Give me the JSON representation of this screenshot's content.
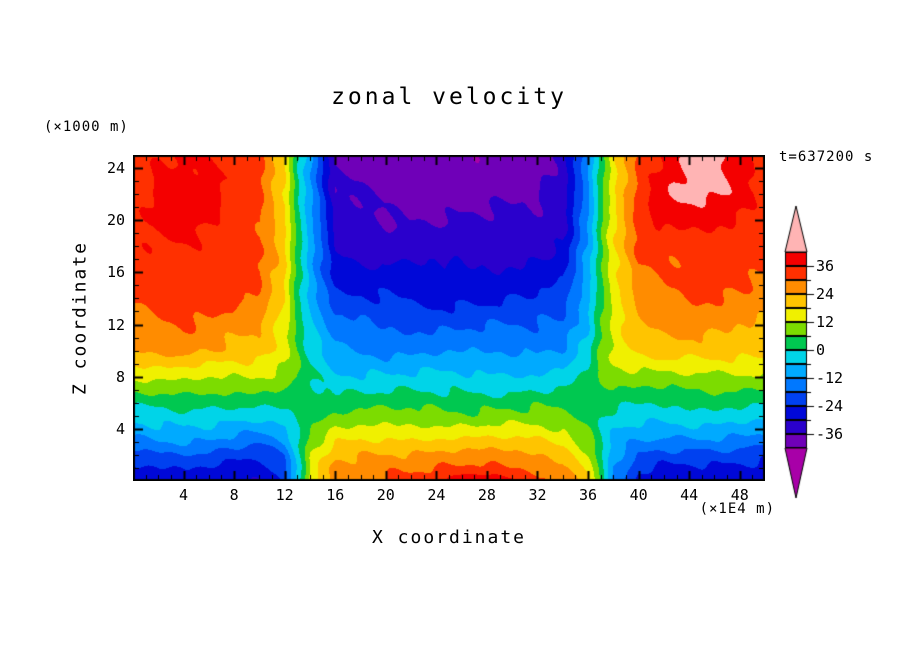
{
  "title": "zonal velocity",
  "timestamp": "t=637200 s",
  "y_axis": {
    "label": "Z coordinate",
    "unit": "(×1000 m)",
    "ticks": [
      4,
      8,
      12,
      16,
      20,
      24
    ]
  },
  "x_axis": {
    "label": "X coordinate",
    "unit": "(×1E4 m)",
    "ticks": [
      4,
      8,
      12,
      16,
      20,
      24,
      28,
      32,
      36,
      40,
      44,
      48
    ]
  },
  "colorbar": {
    "labels": [
      36,
      24,
      12,
      0,
      -12,
      -24,
      -36
    ]
  },
  "chart_data": {
    "type": "heatmap",
    "title": "zonal velocity",
    "xlabel": "X coordinate (×1E4 m)",
    "ylabel": "Z coordinate (×1000 m)",
    "x_range": [
      0,
      50
    ],
    "z_range": [
      0,
      25
    ],
    "grid": false,
    "legend_position": "right-colorbar",
    "levels": [
      -42,
      -36,
      -30,
      -24,
      -18,
      -12,
      -6,
      0,
      6,
      12,
      18,
      24,
      30,
      36,
      42
    ],
    "colors": [
      "#6f00b8",
      "#2a00cc",
      "#0008d8",
      "#0041f0",
      "#0078ff",
      "#00aaff",
      "#00d4e8",
      "#00c850",
      "#7cdc00",
      "#f0f000",
      "#ffc400",
      "#ff8c00",
      "#ff3000",
      "#f40000"
    ],
    "under_color": "#a800a8",
    "over_color": "#ffb4b4",
    "contour_jitter": 1.7,
    "x": [
      0,
      2,
      4,
      6,
      8,
      10,
      12,
      13,
      14,
      16,
      20,
      24,
      28,
      32,
      34,
      36,
      37,
      38,
      40,
      42,
      44,
      46,
      48,
      50
    ],
    "z": [
      0,
      1,
      2,
      3,
      4,
      5,
      6,
      7,
      8,
      10,
      14,
      18,
      22,
      24
    ],
    "values": [
      [
        -29,
        -28,
        -26,
        -27,
        -29,
        -30,
        -24,
        -6,
        14,
        28,
        32,
        34,
        43,
        33,
        29,
        20,
        4,
        -14,
        -26,
        -29,
        -28,
        -27,
        -28,
        -30
      ],
      [
        -26,
        -25,
        -24,
        -24,
        -26,
        -27,
        -21,
        -5,
        12,
        26,
        29,
        30,
        31,
        29,
        26,
        17,
        3,
        -12,
        -23,
        -26,
        -25,
        -24,
        -25,
        -27
      ],
      [
        -21,
        -20,
        -19,
        -19,
        -21,
        -22,
        -17,
        -3,
        10,
        22,
        25,
        26,
        26,
        25,
        22,
        13,
        2,
        -10,
        -19,
        -21,
        -20,
        -19,
        -20,
        -22
      ],
      [
        -14,
        -13,
        -12,
        -13,
        -15,
        -16,
        -11,
        -1,
        8,
        17,
        19,
        20,
        20,
        19,
        17,
        10,
        1,
        -8,
        -13,
        -15,
        -14,
        -13,
        -14,
        -15
      ],
      [
        -8,
        -7,
        -7,
        -8,
        -9,
        -10,
        -6,
        1,
        6,
        12,
        13,
        14,
        14,
        13,
        12,
        7,
        1,
        -5,
        -8,
        -9,
        -8,
        -8,
        -8,
        -9
      ],
      [
        -3,
        -2,
        -2,
        -3,
        -4,
        -4,
        -2,
        2,
        4,
        7,
        8,
        8,
        8,
        8,
        7,
        4,
        2,
        -1,
        -3,
        -4,
        -3,
        -3,
        -3,
        -4
      ],
      [
        2,
        3,
        3,
        2,
        1,
        1,
        2,
        3,
        3,
        3,
        4,
        4,
        4,
        4,
        3,
        3,
        3,
        2,
        1,
        1,
        2,
        2,
        1,
        1
      ],
      [
        8,
        8,
        9,
        8,
        7,
        7,
        5,
        4,
        2,
        0,
        -1,
        -1,
        -1,
        -1,
        0,
        2,
        5,
        6,
        5,
        6,
        6,
        6,
        6,
        5
      ],
      [
        13,
        14,
        14,
        13,
        12,
        12,
        9,
        6,
        1,
        -4,
        -5,
        -5,
        -5,
        -5,
        -4,
        1,
        7,
        9,
        10,
        11,
        11,
        11,
        10,
        10
      ],
      [
        24,
        25,
        26,
        25,
        23,
        22,
        14,
        5,
        -3,
        -11,
        -13,
        -13,
        -13,
        -12,
        -11,
        -3,
        7,
        13,
        19,
        21,
        22,
        22,
        21,
        20
      ],
      [
        31,
        32,
        33,
        32,
        31,
        29,
        18,
        4,
        -7,
        -22,
        -25,
        -25,
        -25,
        -24,
        -22,
        -8,
        5,
        15,
        27,
        29,
        30,
        30,
        29,
        28
      ],
      [
        33,
        35,
        36,
        35,
        33,
        31,
        19,
        3,
        -9,
        -30,
        -33,
        -33,
        -33,
        -32,
        -30,
        -11,
        4,
        16,
        31,
        33,
        34,
        34,
        33,
        32
      ],
      [
        34,
        38,
        39,
        38,
        34,
        32,
        19,
        2,
        -10,
        -35,
        -38,
        -39,
        -38,
        -37,
        -34,
        -12,
        4,
        17,
        33,
        40,
        43,
        43,
        40,
        34
      ],
      [
        33,
        37,
        38,
        36,
        33,
        31,
        18,
        2,
        -10,
        -36,
        -40,
        -41,
        -40,
        -39,
        -35,
        -13,
        3,
        17,
        32,
        38,
        44,
        43,
        38,
        33
      ]
    ]
  }
}
